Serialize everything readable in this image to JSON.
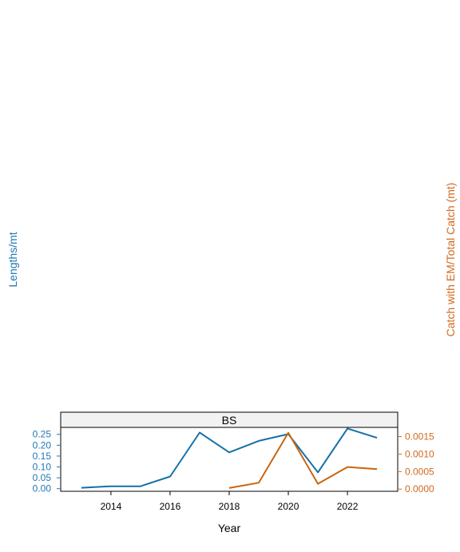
{
  "chart_data": {
    "type": "line",
    "panel_title": "BS",
    "xlabel": "Year",
    "ylabel_left": "Lengths/mt",
    "ylabel_right": "Catch with EM/Total Catch (mt)",
    "xlim": [
      2012.3,
      2023.7
    ],
    "x_ticks": [
      2014,
      2016,
      2018,
      2020,
      2022
    ],
    "y_left": {
      "lim": [
        -0.012,
        0.282
      ],
      "ticks": [
        0.0,
        0.05,
        0.1,
        0.15,
        0.2,
        0.25
      ],
      "tick_labels": [
        "0.00",
        "0.05",
        "0.10",
        "0.15",
        "0.20",
        "0.25"
      ],
      "color": "#1f77b4"
    },
    "y_right": {
      "lim": [
        -6.4e-05,
        0.001765
      ],
      "ticks": [
        0.0,
        0.0005,
        0.001,
        0.0015
      ],
      "tick_labels": [
        "0.0000",
        "0.0005",
        "0.0010",
        "0.0015"
      ],
      "color": "#d2691e"
    },
    "series": [
      {
        "axis": "left",
        "color": "#1570a8",
        "x": [
          2013,
          2014,
          2015,
          2016,
          2017,
          2018,
          2019,
          2020,
          2021,
          2022,
          2023
        ],
        "values": [
          0.004,
          0.011,
          0.011,
          0.056,
          0.258,
          0.167,
          0.22,
          0.251,
          0.075,
          0.277,
          0.234
        ]
      },
      {
        "axis": "right",
        "color": "#c8650f",
        "x": [
          2018,
          2019,
          2020,
          2021,
          2022,
          2023
        ],
        "values": [
          3e-05,
          0.00018,
          0.00161,
          0.00015,
          0.00063,
          0.00057
        ]
      }
    ],
    "grid": false,
    "legend": "none"
  }
}
